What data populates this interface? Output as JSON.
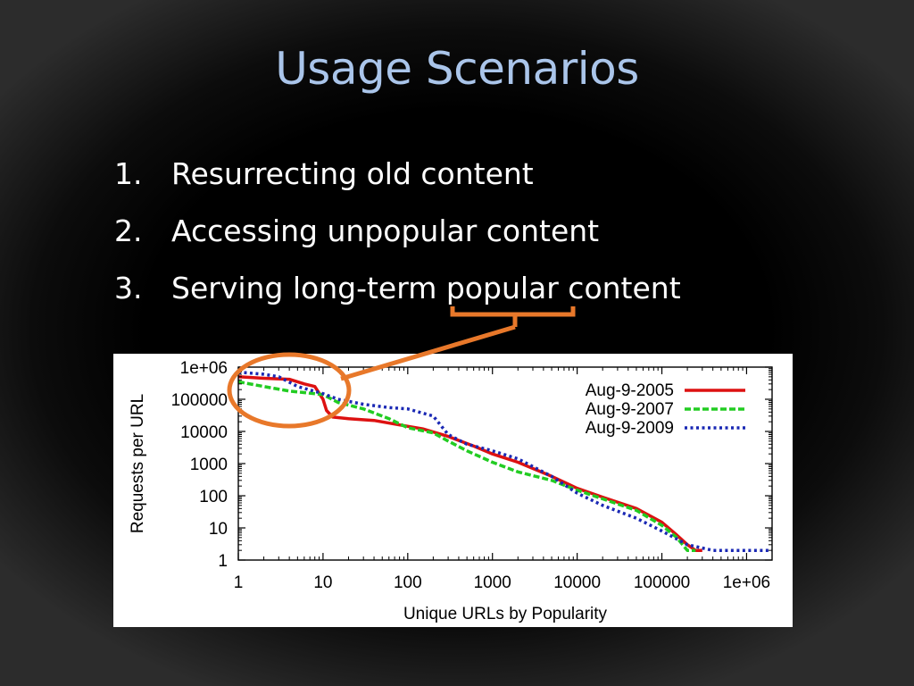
{
  "slide": {
    "title": "Usage Scenarios",
    "bullets": [
      {
        "number": "1.",
        "text": "Resurrecting old content"
      },
      {
        "number": "2.",
        "text": "Accessing unpopular content"
      },
      {
        "number": "3.",
        "text": "Serving long-term popular content"
      }
    ]
  },
  "colors": {
    "title": "#aac5ea",
    "annotation": "#e8782a",
    "series": [
      "#dd1111",
      "#22cc22",
      "#1a28b4"
    ]
  },
  "chart_data": {
    "type": "line",
    "title": "",
    "xlabel": "Unique URLs by Popularity",
    "ylabel": "Requests per URL",
    "xscale": "log",
    "yscale": "log",
    "xlim": [
      1,
      2000000
    ],
    "ylim": [
      1,
      1000000
    ],
    "xticks": [
      1,
      10,
      100,
      1000,
      10000,
      100000,
      1000000
    ],
    "xtick_labels": [
      "1",
      "10",
      "100",
      "1000",
      "10000",
      "100000",
      "1e+06"
    ],
    "yticks": [
      1,
      10,
      100,
      1000,
      10000,
      100000,
      1000000
    ],
    "ytick_labels": [
      "1",
      "10",
      "100",
      "1000",
      "10000",
      "100000",
      "1e+06"
    ],
    "legend_position": "top-right",
    "series": [
      {
        "name": "Aug-9-2005",
        "style": "solid",
        "points": [
          [
            1,
            500000
          ],
          [
            2,
            450000
          ],
          [
            4,
            420000
          ],
          [
            6,
            300000
          ],
          [
            8,
            250000
          ],
          [
            10,
            100000
          ],
          [
            11,
            45000
          ],
          [
            13,
            28000
          ],
          [
            20,
            25000
          ],
          [
            40,
            22000
          ],
          [
            80,
            16000
          ],
          [
            150,
            12000
          ],
          [
            300,
            7000
          ],
          [
            600,
            3500
          ],
          [
            1000,
            2000
          ],
          [
            2000,
            1100
          ],
          [
            5000,
            400
          ],
          [
            10000,
            170
          ],
          [
            20000,
            90
          ],
          [
            50000,
            40
          ],
          [
            100000,
            15
          ],
          [
            150000,
            6
          ],
          [
            200000,
            3
          ],
          [
            250000,
            2
          ],
          [
            300000,
            2
          ]
        ]
      },
      {
        "name": "Aug-9-2007",
        "style": "dashed",
        "points": [
          [
            1,
            350000
          ],
          [
            2,
            250000
          ],
          [
            4,
            180000
          ],
          [
            10,
            140000
          ],
          [
            15,
            80000
          ],
          [
            30,
            50000
          ],
          [
            60,
            25000
          ],
          [
            100,
            13000
          ],
          [
            200,
            9000
          ],
          [
            300,
            5000
          ],
          [
            500,
            2500
          ],
          [
            1000,
            1100
          ],
          [
            2000,
            550
          ],
          [
            5000,
            300
          ],
          [
            10000,
            150
          ],
          [
            20000,
            80
          ],
          [
            50000,
            35
          ],
          [
            100000,
            12
          ],
          [
            150000,
            5
          ],
          [
            200000,
            2
          ],
          [
            250000,
            2
          ]
        ]
      },
      {
        "name": "Aug-9-2009",
        "style": "dotted",
        "points": [
          [
            1,
            700000
          ],
          [
            2,
            600000
          ],
          [
            3,
            500000
          ],
          [
            5,
            250000
          ],
          [
            10,
            150000
          ],
          [
            15,
            100000
          ],
          [
            30,
            70000
          ],
          [
            60,
            55000
          ],
          [
            100,
            50000
          ],
          [
            200,
            30000
          ],
          [
            300,
            8000
          ],
          [
            500,
            4000
          ],
          [
            1000,
            2500
          ],
          [
            2000,
            1400
          ],
          [
            5000,
            400
          ],
          [
            10000,
            120
          ],
          [
            20000,
            50
          ],
          [
            50000,
            20
          ],
          [
            100000,
            8
          ],
          [
            200000,
            3
          ],
          [
            400000,
            2
          ],
          [
            2000000,
            2
          ]
        ]
      }
    ]
  }
}
